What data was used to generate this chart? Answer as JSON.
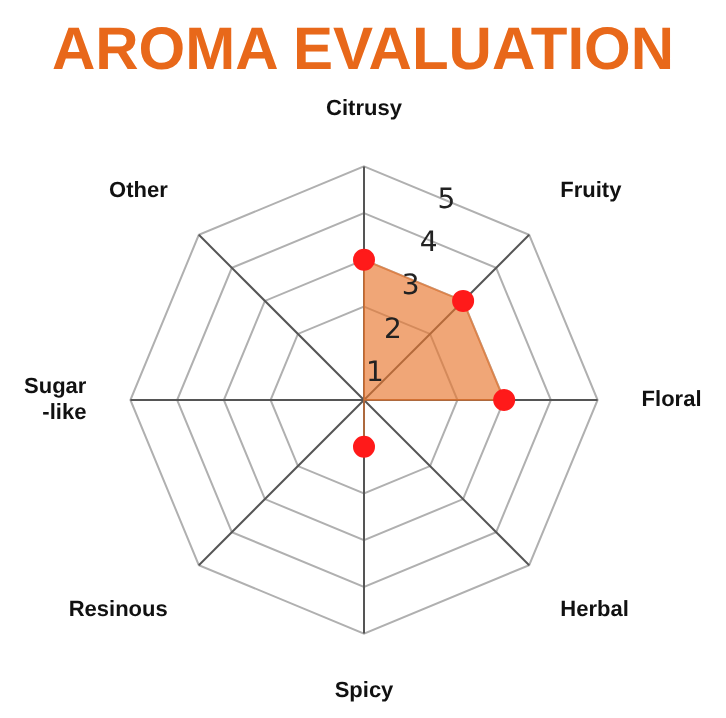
{
  "chart_data": {
    "type": "radar",
    "title": "AROMA EVALUATION",
    "categories": [
      "Citrusy",
      "Fruity",
      "Floral",
      "Herbal",
      "Spicy",
      "Resinous",
      "Sugar\n-like",
      "Other"
    ],
    "series": [
      {
        "color": "#e8772e",
        "values": [
          3,
          3,
          3,
          0,
          1,
          0,
          0,
          0
        ]
      }
    ],
    "ylim": [
      0,
      5
    ],
    "yticks": [
      1,
      2,
      3,
      4,
      5
    ],
    "grid": true,
    "legend": false,
    "marker": "circle"
  }
}
